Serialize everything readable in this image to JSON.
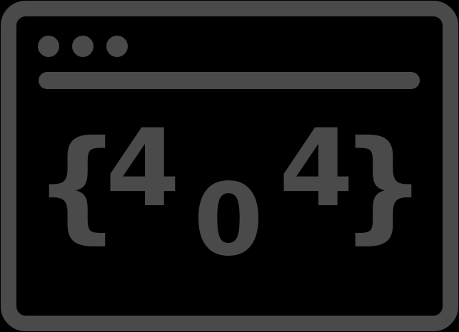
{
  "illustration": {
    "type": "browser-window-404-icon",
    "icon_name": "browser-404-icon",
    "colors": {
      "background": "#000000",
      "stroke": "#4a4a4a"
    },
    "glyphs": {
      "left_brace": "{",
      "digit_1": "4",
      "digit_2": "0",
      "digit_3": "4",
      "right_brace": "}"
    }
  }
}
